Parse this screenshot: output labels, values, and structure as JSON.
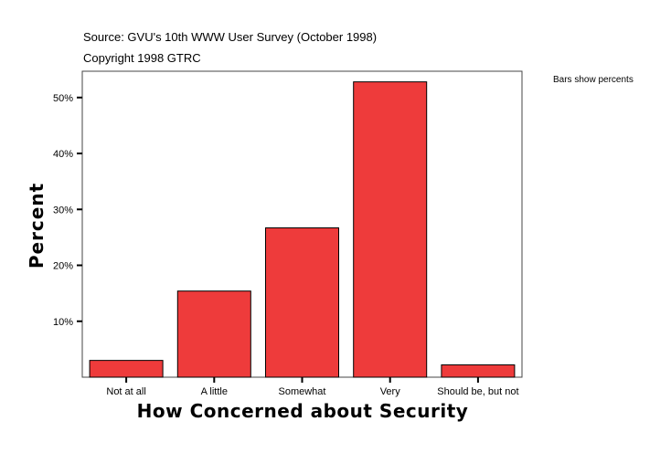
{
  "chart_data": {
    "type": "bar",
    "source": "Source: GVU's 10th WWW User Survey (October 1998)",
    "copyright": "Copyright 1998 GTRC",
    "note": "Bars show percents",
    "xlabel": "How Concerned about Security",
    "ylabel": "Percent",
    "categories": [
      "Not at all",
      "A little",
      "Somewhat",
      "Very",
      "Should be, but not"
    ],
    "values": [
      3.0,
      15.4,
      26.7,
      52.8,
      2.2
    ],
    "yticks": [
      10,
      20,
      30,
      40,
      50
    ],
    "ytick_labels": [
      "10%",
      "20%",
      "30%",
      "40%",
      "50%"
    ],
    "ylim": [
      0,
      54.7
    ],
    "grid": false,
    "bar_color": "#ee3b3b"
  }
}
